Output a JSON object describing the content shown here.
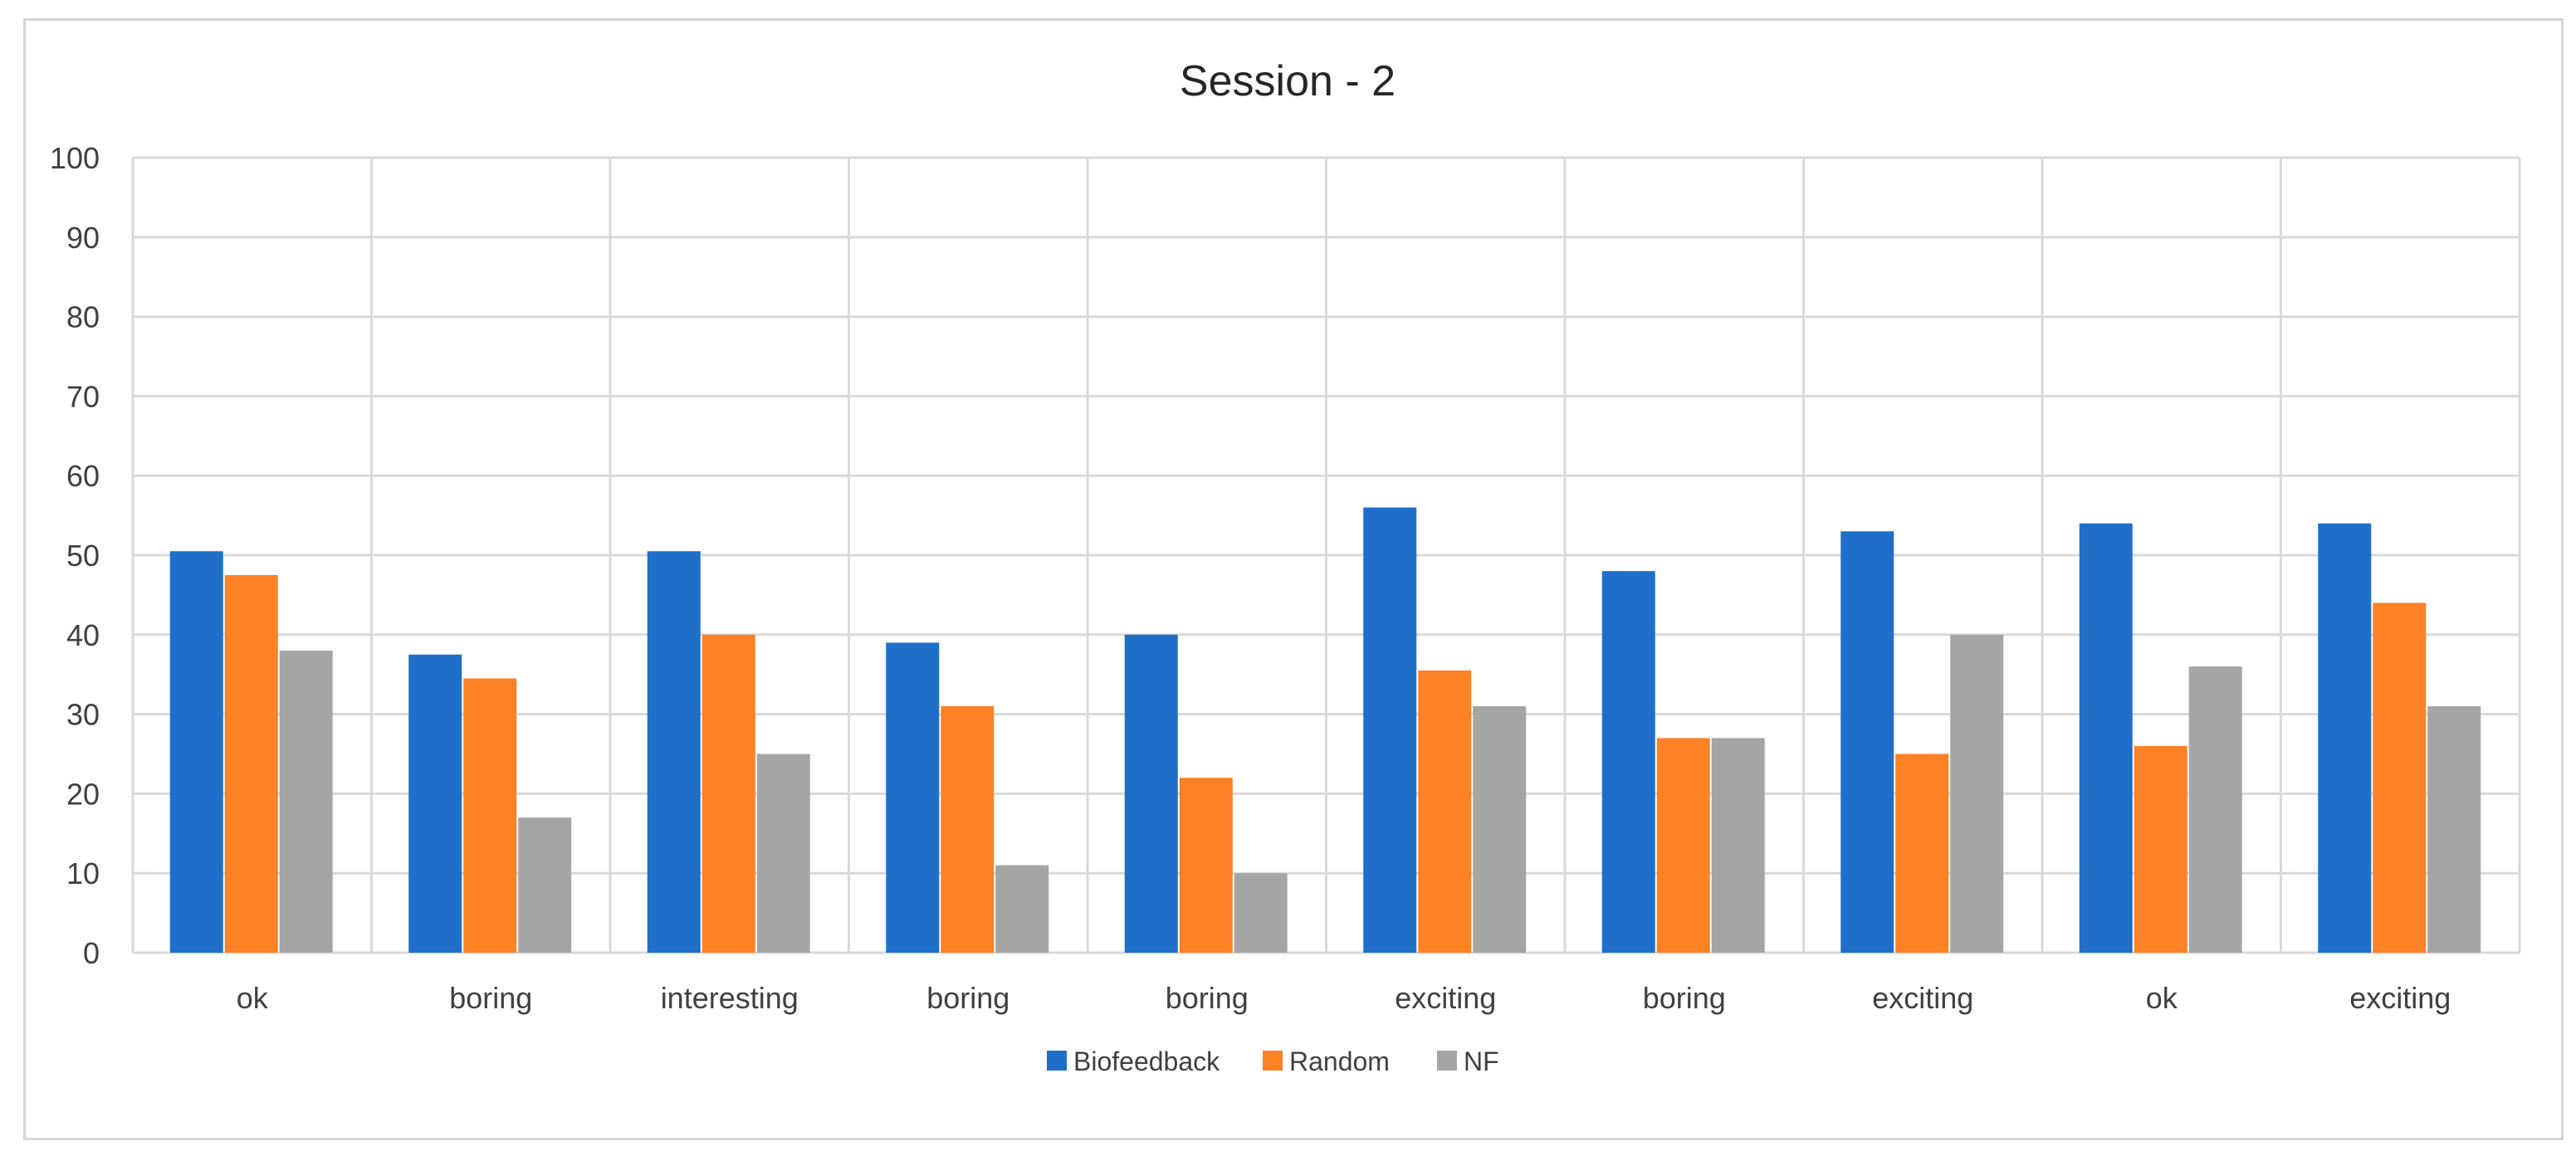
{
  "chart_data": {
    "type": "bar",
    "title": "Session - 2",
    "xlabel": "",
    "ylabel": "",
    "ylim": [
      0,
      100
    ],
    "yticks": [
      0,
      10,
      20,
      30,
      40,
      50,
      60,
      70,
      80,
      90,
      100
    ],
    "grid": true,
    "legend_position": "bottom",
    "categories": [
      "ok",
      "boring",
      "interesting",
      "boring",
      "boring",
      "exciting",
      "boring",
      "exciting",
      "ok",
      "exciting"
    ],
    "series": [
      {
        "name": "Biofeedback",
        "color": "#1f6fc9",
        "values": [
          50.5,
          37.5,
          50.5,
          39,
          40,
          56,
          48,
          53,
          54,
          54
        ]
      },
      {
        "name": "Random",
        "color": "#fd8125",
        "values": [
          47.5,
          34.5,
          40,
          31,
          22,
          35.5,
          27,
          25,
          26,
          44
        ]
      },
      {
        "name": "NF",
        "color": "#a5a5a5",
        "values": [
          38,
          17,
          25,
          11,
          10,
          31,
          27,
          40,
          36,
          31
        ]
      }
    ]
  }
}
